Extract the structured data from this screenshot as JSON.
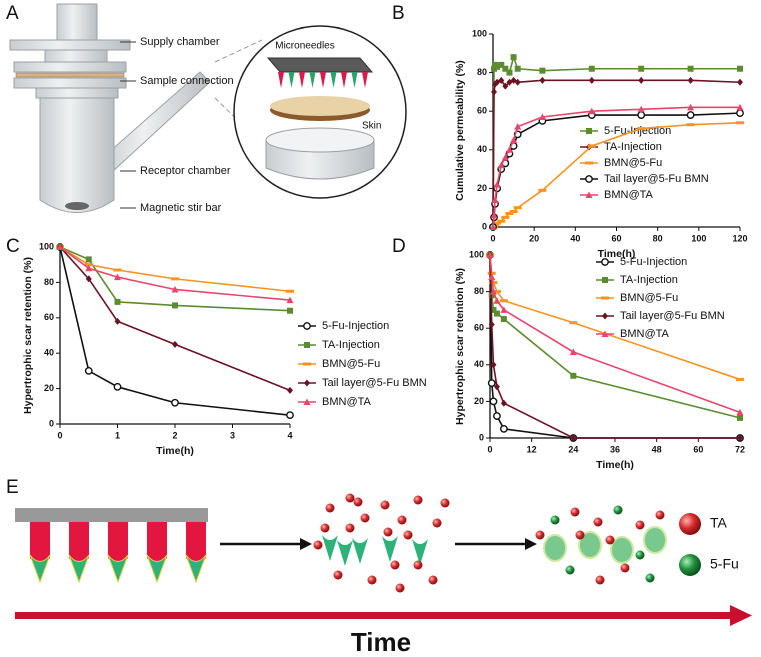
{
  "diagram_a": {
    "panel": "A",
    "labels": [
      "Supply chamber",
      "Sample connection",
      "Receptor chamber",
      "Magnetic stir bar"
    ],
    "inset_labels": [
      "Microneedles",
      "Skin"
    ]
  },
  "chart_data": [
    {
      "type": "line",
      "panel": "B",
      "y_label": "Cumulative permeability (%)",
      "x_label": "Time(h)",
      "x": [
        0,
        0.5,
        1,
        2,
        4,
        6,
        8,
        10,
        12,
        24,
        48,
        72,
        96,
        120
      ],
      "xlim": [
        0,
        120
      ],
      "xticks": [
        0,
        20,
        40,
        60,
        80,
        100,
        120
      ],
      "ylim": [
        0,
        100
      ],
      "yticks": [
        0,
        20,
        40,
        60,
        80,
        100
      ],
      "series": [
        {
          "name": "5-Fu-Injection",
          "color": "#5b8c2f",
          "marker": "square",
          "values": [
            0,
            82,
            84,
            83,
            84,
            82,
            80,
            88,
            82,
            81,
            82,
            82,
            82,
            82
          ]
        },
        {
          "name": "TA-Injection",
          "color": "#6b1224",
          "marker": "diamond",
          "values": [
            0,
            70,
            74,
            75,
            76,
            73,
            75,
            76,
            75,
            76,
            76,
            76,
            76,
            75
          ]
        },
        {
          "name": "BMN@5-Fu",
          "color": "#f7931e",
          "marker": "dash",
          "values": [
            0,
            0,
            1,
            2,
            3,
            5,
            7,
            8,
            10,
            19,
            42,
            51,
            53,
            54
          ]
        },
        {
          "name": "Tail layer@5-Fu BMN",
          "color": "#111111",
          "marker": "circle",
          "values": [
            0,
            5,
            12,
            20,
            30,
            33,
            38,
            42,
            48,
            55,
            58,
            58,
            58,
            59
          ]
        },
        {
          "name": "BMN@TA",
          "color": "#e8456b",
          "marker": "triangle",
          "values": [
            0,
            6,
            14,
            22,
            32,
            36,
            40,
            45,
            52,
            57,
            60,
            61,
            62,
            62
          ]
        }
      ]
    },
    {
      "type": "line",
      "panel": "C",
      "y_label": "Hypertrophic scar retention (%)",
      "x_label": "Time(h)",
      "x": [
        0,
        0.5,
        1,
        2,
        4
      ],
      "xlim": [
        0,
        4
      ],
      "xticks": [
        0,
        1,
        2,
        3,
        4
      ],
      "ylim": [
        0,
        100
      ],
      "yticks": [
        0,
        20,
        40,
        60,
        80,
        100
      ],
      "series": [
        {
          "name": "5-Fu-Injection",
          "color": "#111111",
          "marker": "circle",
          "values": [
            100,
            30,
            21,
            12,
            5
          ]
        },
        {
          "name": "TA-Injection",
          "color": "#5b8c2f",
          "marker": "square",
          "values": [
            100,
            93,
            69,
            67,
            64
          ]
        },
        {
          "name": "BMN@5-Fu",
          "color": "#f7931e",
          "marker": "dash",
          "values": [
            100,
            90,
            87,
            82,
            75
          ]
        },
        {
          "name": "Tail layer@5-Fu BMN",
          "color": "#6b1224",
          "marker": "diamond",
          "values": [
            100,
            82,
            58,
            45,
            19
          ]
        },
        {
          "name": "BMN@TA",
          "color": "#e8456b",
          "marker": "triangle",
          "values": [
            100,
            88,
            83,
            76,
            70
          ]
        }
      ]
    },
    {
      "type": "line",
      "panel": "D",
      "y_label": "Hypertrophic scar retention (%)",
      "x_label": "Time(h)",
      "x": [
        0,
        0.5,
        1,
        2,
        4,
        24,
        72
      ],
      "xlim": [
        0,
        72
      ],
      "xticks": [
        0,
        12,
        24,
        36,
        48,
        60,
        72
      ],
      "ylim": [
        0,
        100
      ],
      "yticks": [
        0,
        20,
        40,
        60,
        80,
        100
      ],
      "series": [
        {
          "name": "5-Fu-Injection",
          "color": "#111111",
          "marker": "circle",
          "values": [
            100,
            30,
            20,
            12,
            5,
            0,
            0
          ]
        },
        {
          "name": "TA-Injection",
          "color": "#5b8c2f",
          "marker": "square",
          "values": [
            100,
            78,
            70,
            68,
            65,
            34,
            11
          ]
        },
        {
          "name": "BMN@5-Fu",
          "color": "#f7931e",
          "marker": "dash",
          "values": [
            100,
            90,
            85,
            80,
            75,
            63,
            32
          ]
        },
        {
          "name": "Tail layer@5-Fu BMN",
          "color": "#6b1224",
          "marker": "diamond",
          "values": [
            100,
            62,
            40,
            28,
            19,
            0,
            0
          ]
        },
        {
          "name": "BMN@TA",
          "color": "#e8456b",
          "marker": "triangle",
          "values": [
            100,
            88,
            80,
            75,
            70,
            47,
            14
          ]
        }
      ]
    }
  ],
  "diagram_e": {
    "panel": "E",
    "legend": [
      "TA",
      "5-Fu"
    ],
    "axis_label": "Time"
  }
}
